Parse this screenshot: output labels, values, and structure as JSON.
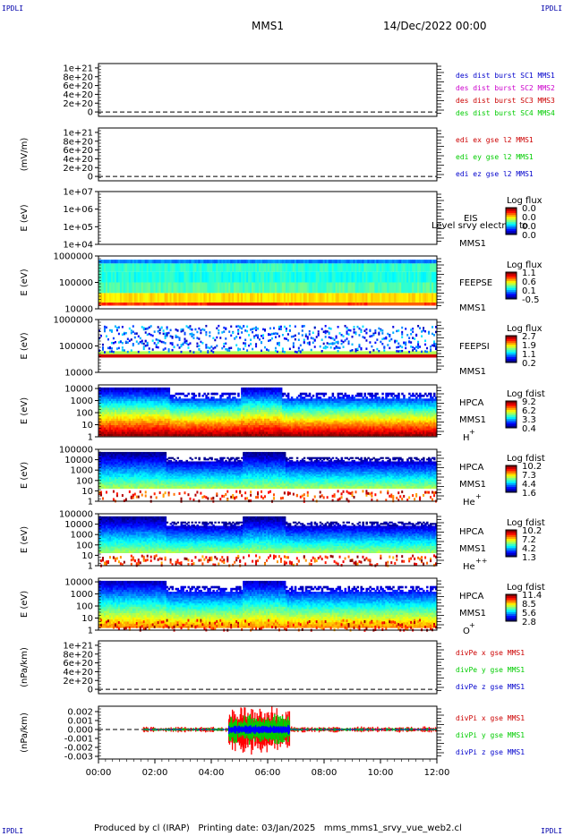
{
  "header": {
    "corner_label": "IPDLI",
    "spacecraft": "MMS1",
    "datetime": "14/Dec/2022 00:00"
  },
  "footer": "Produced by cl (IRAP)   Printing date: 03/Jan/2025   mms_mms1_srvy_vue_web2.cl",
  "colors": {
    "blue": "#0000cc",
    "magenta": "#cc00cc",
    "red": "#cc0000",
    "green": "#00cc00"
  },
  "chart_data": [
    {
      "type": "line",
      "id": "des_dist",
      "ylabel": "",
      "yticks": [
        "0",
        "2e+20",
        "4e+20",
        "6e+20",
        "8e+20",
        "1e+21"
      ],
      "ytick_values": [
        0,
        2e+20,
        4e+20,
        6e+20,
        8e+20,
        1e+21
      ],
      "ylim": [
        -1e+20,
        1.1e+21
      ],
      "dashed_zero": true,
      "series": [],
      "legend": [
        {
          "text": "des dist burst SC1 MMS1",
          "color": "#0000cc"
        },
        {
          "text": "des dist burst SC2 MMS2",
          "color": "#cc00cc"
        },
        {
          "text": "des dist burst SC3 MMS3",
          "color": "#cc0000"
        },
        {
          "text": "des dist burst SC4 MMS4",
          "color": "#00cc00"
        }
      ]
    },
    {
      "type": "line",
      "id": "edi",
      "ylabel": "(mV/m)",
      "yticks": [
        "0",
        "2e+20",
        "4e+20",
        "6e+20",
        "8e+20",
        "1e+21"
      ],
      "ytick_values": [
        0,
        2e+20,
        4e+20,
        6e+20,
        8e+20,
        1e+21
      ],
      "ylim": [
        -1e+20,
        1.1e+21
      ],
      "dashed_zero": true,
      "series": [],
      "legend": [
        {
          "text": "edi ex gse l2 MMS1",
          "color": "#cc0000"
        },
        {
          "text": "edi ey gse l2 MMS1",
          "color": "#00cc00"
        },
        {
          "text": "edi ez gse l2 MMS1",
          "color": "#0000cc"
        }
      ]
    },
    {
      "type": "heatmap",
      "id": "eis",
      "ylabel": "E (eV)",
      "yticks": [
        "1e+04",
        "1e+05",
        "1e+06",
        "1e+07"
      ],
      "log_range": [
        4,
        7
      ],
      "pattern": "empty",
      "labels": [
        "EIS",
        "MMS1"
      ],
      "overlay_text": "Level srvy electron to",
      "colorbar_title": "Log flux",
      "colorbar_ticks": [
        "0.0",
        "0.0",
        "0.0",
        "0.0"
      ]
    },
    {
      "type": "heatmap",
      "id": "feepse",
      "ylabel": "E (eV)",
      "yticks": [
        "10000",
        "100000",
        "1000000"
      ],
      "log_range": [
        4,
        6
      ],
      "pattern": "feeps_e",
      "labels": [
        "FEEPSE",
        "MMS1"
      ],
      "colorbar_title": "Log flux",
      "colorbar_ticks": [
        "1.1",
        "0.6",
        "0.1",
        "-0.5"
      ]
    },
    {
      "type": "heatmap",
      "id": "feepsi",
      "ylabel": "E (eV)",
      "yticks": [
        "10000",
        "100000",
        "1000000"
      ],
      "log_range": [
        4,
        6
      ],
      "pattern": "feeps_i",
      "labels": [
        "FEEPSI",
        "MMS1"
      ],
      "colorbar_title": "Log flux",
      "colorbar_ticks": [
        "2.7",
        "1.9",
        "1.1",
        "0.2"
      ]
    },
    {
      "type": "heatmap",
      "id": "hpca_h",
      "ylabel": "E (eV)",
      "yticks": [
        "1",
        "10",
        "100",
        "1000",
        "10000"
      ],
      "log_range": [
        0,
        4.3
      ],
      "pattern": "hpca_h",
      "labels": [
        "HPCA",
        "MMS1"
      ],
      "species": "H",
      "charge": "+",
      "colorbar_title": "Log fdist",
      "colorbar_ticks": [
        "9.2",
        "6.2",
        "3.3",
        "0.4"
      ]
    },
    {
      "type": "heatmap",
      "id": "hpca_he",
      "ylabel": "E (eV)",
      "yticks": [
        "1",
        "10",
        "100",
        "1000",
        "10000",
        "100000"
      ],
      "log_range": [
        0,
        5
      ],
      "pattern": "hpca_he",
      "labels": [
        "HPCA",
        "MMS1"
      ],
      "species": "He",
      "charge": "+",
      "colorbar_title": "Log fdist",
      "colorbar_ticks": [
        "10.2",
        "7.3",
        "4.4",
        "1.6"
      ]
    },
    {
      "type": "heatmap",
      "id": "hpca_hepp",
      "ylabel": "E (eV)",
      "yticks": [
        "1",
        "10",
        "100",
        "1000",
        "10000",
        "100000"
      ],
      "log_range": [
        0,
        5
      ],
      "pattern": "hpca_hepp",
      "labels": [
        "HPCA",
        "MMS1"
      ],
      "species": "He",
      "charge": "++",
      "colorbar_title": "Log fdist",
      "colorbar_ticks": [
        "10.2",
        "7.2",
        "4.2",
        "1.3"
      ]
    },
    {
      "type": "heatmap",
      "id": "hpca_o",
      "ylabel": "E (eV)",
      "yticks": [
        "1",
        "10",
        "100",
        "1000",
        "10000"
      ],
      "log_range": [
        0,
        4.3
      ],
      "pattern": "hpca_o",
      "labels": [
        "HPCA",
        "MMS1"
      ],
      "species": "O",
      "charge": "+",
      "colorbar_title": "Log fdist",
      "colorbar_ticks": [
        "11.4",
        "8.5",
        "5.6",
        "2.8"
      ]
    },
    {
      "type": "line",
      "id": "divpe",
      "ylabel": "(nPa/km)",
      "yticks": [
        "0",
        "2e+20",
        "4e+20",
        "6e+20",
        "8e+20",
        "1e+21"
      ],
      "ytick_values": [
        0,
        2e+20,
        4e+20,
        6e+20,
        8e+20,
        1e+21
      ],
      "ylim": [
        -1e+20,
        1.1e+21
      ],
      "dashed_zero": true,
      "series": [],
      "legend": [
        {
          "text": "divPe x gse MMS1",
          "color": "#cc0000"
        },
        {
          "text": "divPe y gse MMS1",
          "color": "#00cc00"
        },
        {
          "text": "divPe z gse MMS1",
          "color": "#0000cc"
        }
      ]
    },
    {
      "type": "line",
      "id": "divpi",
      "ylabel": "(nPa/km)",
      "yticks": [
        "-0.003",
        "-0.002",
        "-0.001",
        "0.000",
        "0.001",
        "0.002"
      ],
      "ytick_values": [
        -0.003,
        -0.002,
        -0.001,
        0,
        0.001,
        0.002
      ],
      "ylim": [
        -0.0033,
        0.0026
      ],
      "dashed_zero": true,
      "data_start_hour": 1.6,
      "active_window_hours": [
        4.6,
        6.8
      ],
      "series": [
        {
          "name": "divPi x gse MMS1",
          "color": "#ff0000",
          "peak_abs": 0.003
        },
        {
          "name": "divPi y gse MMS1",
          "color": "#00cc00",
          "peak_abs": 0.0018
        },
        {
          "name": "divPi z gse MMS1",
          "color": "#0000ff",
          "peak_abs": 0.0006
        }
      ],
      "legend": [
        {
          "text": "divPi x gse MMS1",
          "color": "#cc0000"
        },
        {
          "text": "divPi y gse MMS1",
          "color": "#00cc00"
        },
        {
          "text": "divPi z gse MMS1",
          "color": "#0000cc"
        }
      ]
    }
  ],
  "time_axis": {
    "range_hours": [
      0,
      12
    ],
    "ticks": [
      "00:00",
      "02:00",
      "04:00",
      "06:00",
      "08:00",
      "10:00",
      "12:00"
    ]
  }
}
